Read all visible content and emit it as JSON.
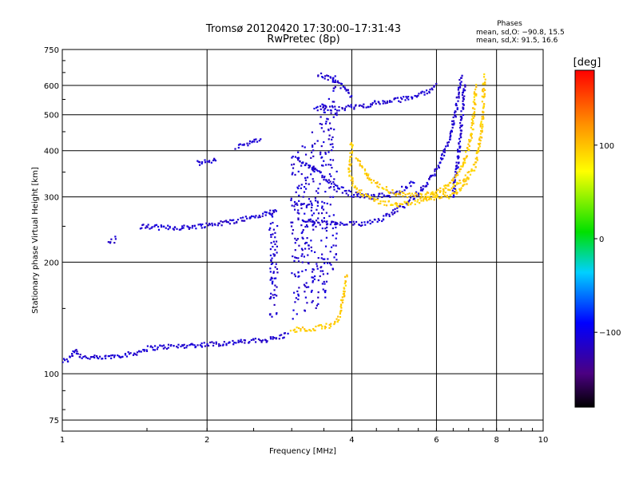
{
  "header": {
    "title": "Tromsø 20120420 17:30:00–17:31:43",
    "subtitle": "RwPretec (8p)"
  },
  "phases": {
    "heading": "Phases",
    "line_o": "mean, sd,O: −90.8, 15.5",
    "line_x": "mean, sd,X:  91.5, 16.6"
  },
  "colorbar": {
    "unit": "[deg]",
    "range": [
      -180,
      180
    ],
    "ticks": [
      100,
      0,
      -100
    ],
    "tick_labels": [
      "100",
      "0",
      "−100"
    ]
  },
  "chart_data": {
    "type": "scatter",
    "title": "Tromsø 20120420 17:30:00–17:31:43",
    "subtitle": "RwPretec (8p)",
    "xlabel": "Frequency [MHz]",
    "ylabel": "Stationary phase Virtual Height [km]",
    "x_scale": "log",
    "y_scale": "log",
    "xlim": [
      1,
      10
    ],
    "ylim": [
      70,
      750
    ],
    "x_ticks": [
      1,
      2,
      4,
      6,
      8,
      10
    ],
    "x_tick_labels": [
      "1",
      "2",
      "4",
      "6",
      "8",
      "10"
    ],
    "y_ticks": [
      75,
      100,
      200,
      300,
      400,
      500,
      600,
      750
    ],
    "y_tick_labels": [
      "75",
      "100",
      "200",
      "300",
      "400",
      "500",
      "600",
      "750"
    ],
    "grid": true,
    "color_dimension": "phase [deg]",
    "series": [
      {
        "phase_deg": -110,
        "traces": [
          [
            [
              1.0,
              108
            ],
            [
              1.03,
              109
            ],
            [
              1.06,
              116
            ],
            [
              1.1,
              111
            ],
            [
              1.2,
              110
            ],
            [
              1.3,
              112
            ],
            [
              1.4,
              113
            ],
            [
              1.5,
              117
            ],
            [
              1.6,
              118
            ],
            [
              1.8,
              119
            ],
            [
              2.0,
              120
            ],
            [
              2.2,
              121
            ],
            [
              2.4,
              122
            ],
            [
              2.6,
              123
            ],
            [
              2.8,
              125
            ],
            [
              2.95,
              128
            ]
          ],
          [
            [
              1.45,
              250
            ],
            [
              1.6,
              248
            ],
            [
              1.8,
              248
            ],
            [
              2.0,
              252
            ],
            [
              2.2,
              256
            ],
            [
              2.4,
              262
            ],
            [
              2.6,
              268
            ],
            [
              2.8,
              277
            ]
          ],
          [
            [
              1.25,
              225
            ],
            [
              1.3,
              232
            ]
          ],
          [
            [
              1.9,
              370
            ],
            [
              2.0,
              373
            ],
            [
              2.1,
              377
            ]
          ],
          [
            [
              2.3,
              410
            ],
            [
              2.4,
              418
            ],
            [
              2.6,
              426
            ]
          ],
          [
            [
              3.15,
              260
            ],
            [
              3.4,
              256
            ],
            [
              3.8,
              253
            ],
            [
              4.2,
              254
            ],
            [
              4.6,
              262
            ],
            [
              5.0,
              278
            ],
            [
              5.4,
              300
            ],
            [
              5.8,
              330
            ],
            [
              6.1,
              370
            ],
            [
              6.4,
              430
            ],
            [
              6.6,
              520
            ],
            [
              6.75,
              640
            ]
          ],
          [
            [
              3.35,
              520
            ],
            [
              3.6,
              520
            ],
            [
              3.9,
              522
            ],
            [
              4.2,
              528
            ],
            [
              4.6,
              540
            ],
            [
              5.0,
              548
            ],
            [
              5.4,
              560
            ],
            [
              5.8,
              582
            ],
            [
              6.0,
              605
            ]
          ],
          [
            [
              3.4,
              640
            ],
            [
              3.7,
              620
            ],
            [
              3.9,
              580
            ],
            [
              4.0,
              560
            ]
          ],
          [
            [
              3.1,
              380
            ],
            [
              3.4,
              350
            ],
            [
              3.7,
              320
            ],
            [
              4.0,
              305
            ],
            [
              4.4,
              300
            ],
            [
              4.9,
              305
            ],
            [
              5.4,
              330
            ]
          ],
          [
            [
              6.5,
              300
            ],
            [
              6.6,
              350
            ],
            [
              6.7,
              420
            ],
            [
              6.8,
              520
            ],
            [
              6.85,
              600
            ]
          ]
        ],
        "columns": [
          {
            "x": 3.05,
            "y_range": [
              140,
              400
            ]
          },
          {
            "x": 3.2,
            "y_range": [
              145,
              420
            ]
          },
          {
            "x": 3.35,
            "y_range": [
              150,
              450
            ]
          },
          {
            "x": 3.5,
            "y_range": [
              160,
              560
            ]
          },
          {
            "x": 3.65,
            "y_range": [
              180,
              640
            ]
          },
          {
            "x": 2.75,
            "y_range": [
              140,
              280
            ]
          }
        ]
      },
      {
        "phase_deg": 95,
        "traces": [
          [
            [
              3.0,
              131
            ],
            [
              3.2,
              132
            ],
            [
              3.4,
              133
            ],
            [
              3.6,
              135
            ],
            [
              3.75,
              140
            ],
            [
              3.8,
              150
            ],
            [
              3.85,
              165
            ],
            [
              3.9,
              185
            ]
          ],
          [
            [
              4.0,
              420
            ],
            [
              3.95,
              350
            ],
            [
              4.05,
              320
            ],
            [
              4.2,
              305
            ],
            [
              4.5,
              292
            ],
            [
              4.9,
              286
            ],
            [
              5.3,
              288
            ],
            [
              5.7,
              296
            ],
            [
              6.2,
              310
            ],
            [
              6.8,
              330
            ],
            [
              7.2,
              360
            ],
            [
              7.4,
              430
            ],
            [
              7.5,
              520
            ],
            [
              7.55,
              640
            ]
          ],
          [
            [
              4.1,
              380
            ],
            [
              4.4,
              330
            ],
            [
              4.8,
              310
            ],
            [
              5.3,
              302
            ],
            [
              5.8,
              305
            ],
            [
              6.3,
              320
            ],
            [
              6.8,
              360
            ],
            [
              7.1,
              440
            ],
            [
              7.2,
              540
            ],
            [
              7.25,
              600
            ]
          ],
          [
            [
              5.6,
              300
            ],
            [
              6.0,
              298
            ],
            [
              6.4,
              300
            ],
            [
              6.8,
              318
            ],
            [
              7.0,
              340
            ]
          ]
        ]
      }
    ]
  }
}
